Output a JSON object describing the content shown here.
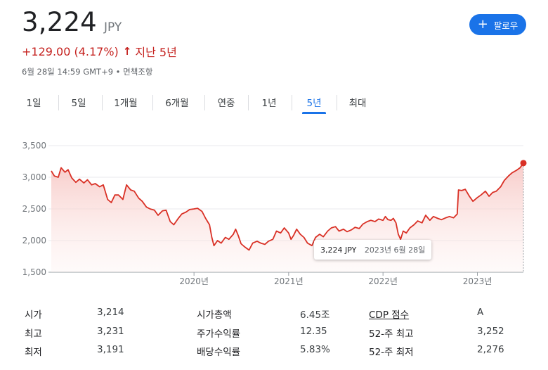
{
  "quote": {
    "price": "3,224",
    "currency": "JPY",
    "change": "+129.00 (4.17%)",
    "period_label": "지난 5년",
    "meta": "6월 28일 14:59 GMT+9 • 면책조항",
    "follow_label": "팔로우"
  },
  "tabs": [
    {
      "label": "1일"
    },
    {
      "label": "5일"
    },
    {
      "label": "1개월"
    },
    {
      "label": "6개월"
    },
    {
      "label": "연중"
    },
    {
      "label": "1년"
    },
    {
      "label": "5년",
      "active": true
    },
    {
      "label": "최대"
    }
  ],
  "tooltip": {
    "price": "3,224 JPY",
    "date": "2023년 6월 28일"
  },
  "chart_data": {
    "type": "area",
    "ylim": [
      1500,
      3500
    ],
    "yticks": [
      "3,500",
      "3,000",
      "2,500",
      "2,000",
      "1,500"
    ],
    "xticks": [
      "2020년",
      "2021년",
      "2022년",
      "2023년"
    ],
    "x_start": "2018-06-28",
    "x_end": "2023-06-28",
    "line_color": "#d93025",
    "points": [
      [
        "2018-06-28",
        3100
      ],
      [
        "2018-07-10",
        3020
      ],
      [
        "2018-07-25",
        3000
      ],
      [
        "2018-08-05",
        3150
      ],
      [
        "2018-08-20",
        3080
      ],
      [
        "2018-09-01",
        3120
      ],
      [
        "2018-09-15",
        2990
      ],
      [
        "2018-10-01",
        2920
      ],
      [
        "2018-10-15",
        2970
      ],
      [
        "2018-11-01",
        2910
      ],
      [
        "2018-11-15",
        2960
      ],
      [
        "2018-12-01",
        2880
      ],
      [
        "2018-12-15",
        2900
      ],
      [
        "2019-01-01",
        2850
      ],
      [
        "2019-01-15",
        2880
      ],
      [
        "2019-02-01",
        2650
      ],
      [
        "2019-02-15",
        2600
      ],
      [
        "2019-03-01",
        2720
      ],
      [
        "2019-03-15",
        2720
      ],
      [
        "2019-04-01",
        2650
      ],
      [
        "2019-04-15",
        2880
      ],
      [
        "2019-05-01",
        2800
      ],
      [
        "2019-05-15",
        2780
      ],
      [
        "2019-06-01",
        2670
      ],
      [
        "2019-06-15",
        2620
      ],
      [
        "2019-07-01",
        2530
      ],
      [
        "2019-07-15",
        2500
      ],
      [
        "2019-08-01",
        2480
      ],
      [
        "2019-08-15",
        2400
      ],
      [
        "2019-09-01",
        2470
      ],
      [
        "2019-09-15",
        2480
      ],
      [
        "2019-10-01",
        2300
      ],
      [
        "2019-10-15",
        2250
      ],
      [
        "2019-11-01",
        2350
      ],
      [
        "2019-11-15",
        2420
      ],
      [
        "2019-12-01",
        2450
      ],
      [
        "2019-12-15",
        2490
      ],
      [
        "2020-01-01",
        2500
      ],
      [
        "2020-01-15",
        2510
      ],
      [
        "2020-02-01",
        2460
      ],
      [
        "2020-02-15",
        2350
      ],
      [
        "2020-03-01",
        2250
      ],
      [
        "2020-03-10",
        2050
      ],
      [
        "2020-03-18",
        1920
      ],
      [
        "2020-04-01",
        2000
      ],
      [
        "2020-04-15",
        1960
      ],
      [
        "2020-05-01",
        2050
      ],
      [
        "2020-05-15",
        2020
      ],
      [
        "2020-06-01",
        2100
      ],
      [
        "2020-06-10",
        2180
      ],
      [
        "2020-06-20",
        2080
      ],
      [
        "2020-07-01",
        1950
      ],
      [
        "2020-07-15",
        1900
      ],
      [
        "2020-08-01",
        1850
      ],
      [
        "2020-08-15",
        1960
      ],
      [
        "2020-09-01",
        1990
      ],
      [
        "2020-09-15",
        1960
      ],
      [
        "2020-10-01",
        1940
      ],
      [
        "2020-10-15",
        1990
      ],
      [
        "2020-11-01",
        2020
      ],
      [
        "2020-11-15",
        2150
      ],
      [
        "2020-12-01",
        2120
      ],
      [
        "2020-12-15",
        2200
      ],
      [
        "2021-01-01",
        2120
      ],
      [
        "2021-01-10",
        2020
      ],
      [
        "2021-01-20",
        2080
      ],
      [
        "2021-02-01",
        2180
      ],
      [
        "2021-02-15",
        2100
      ],
      [
        "2021-03-01",
        2050
      ],
      [
        "2021-03-15",
        1960
      ],
      [
        "2021-04-01",
        1920
      ],
      [
        "2021-04-15",
        2050
      ],
      [
        "2021-05-01",
        2100
      ],
      [
        "2021-05-15",
        2060
      ],
      [
        "2021-06-01",
        2150
      ],
      [
        "2021-06-15",
        2200
      ],
      [
        "2021-07-01",
        2220
      ],
      [
        "2021-07-15",
        2150
      ],
      [
        "2021-08-01",
        2180
      ],
      [
        "2021-08-15",
        2140
      ],
      [
        "2021-09-01",
        2170
      ],
      [
        "2021-09-15",
        2210
      ],
      [
        "2021-10-01",
        2190
      ],
      [
        "2021-10-15",
        2260
      ],
      [
        "2021-11-01",
        2300
      ],
      [
        "2021-11-15",
        2320
      ],
      [
        "2021-12-01",
        2300
      ],
      [
        "2021-12-15",
        2340
      ],
      [
        "2022-01-01",
        2320
      ],
      [
        "2022-01-10",
        2380
      ],
      [
        "2022-01-20",
        2330
      ],
      [
        "2022-02-01",
        2320
      ],
      [
        "2022-02-10",
        2350
      ],
      [
        "2022-02-20",
        2280
      ],
      [
        "2022-03-01",
        2100
      ],
      [
        "2022-03-10",
        2020
      ],
      [
        "2022-03-20",
        2150
      ],
      [
        "2022-04-01",
        2120
      ],
      [
        "2022-04-15",
        2200
      ],
      [
        "2022-05-01",
        2250
      ],
      [
        "2022-05-15",
        2310
      ],
      [
        "2022-06-01",
        2280
      ],
      [
        "2022-06-15",
        2400
      ],
      [
        "2022-07-01",
        2320
      ],
      [
        "2022-07-15",
        2380
      ],
      [
        "2022-08-01",
        2350
      ],
      [
        "2022-08-15",
        2330
      ],
      [
        "2022-09-01",
        2360
      ],
      [
        "2022-09-15",
        2380
      ],
      [
        "2022-10-01",
        2360
      ],
      [
        "2022-10-15",
        2420
      ],
      [
        "2022-10-20",
        2800
      ],
      [
        "2022-11-01",
        2790
      ],
      [
        "2022-11-15",
        2810
      ],
      [
        "2022-12-01",
        2700
      ],
      [
        "2022-12-15",
        2620
      ],
      [
        "2023-01-01",
        2680
      ],
      [
        "2023-01-15",
        2720
      ],
      [
        "2023-02-01",
        2780
      ],
      [
        "2023-02-15",
        2700
      ],
      [
        "2023-03-01",
        2760
      ],
      [
        "2023-03-15",
        2780
      ],
      [
        "2023-04-01",
        2850
      ],
      [
        "2023-04-15",
        2950
      ],
      [
        "2023-05-01",
        3020
      ],
      [
        "2023-05-15",
        3070
      ],
      [
        "2023-06-01",
        3110
      ],
      [
        "2023-06-15",
        3150
      ],
      [
        "2023-06-28",
        3224
      ]
    ]
  },
  "stats": [
    {
      "label": "시가",
      "value": "3,214"
    },
    {
      "label": "최고",
      "value": "3,231"
    },
    {
      "label": "최저",
      "value": "3,191"
    },
    {
      "label": "시가총액",
      "value": "6.45조"
    },
    {
      "label": "주가수익률",
      "value": "12.35"
    },
    {
      "label": "배당수익률",
      "value": "5.83%"
    },
    {
      "label": "CDP 점수",
      "value": "A"
    },
    {
      "label": "52-주 최고",
      "value": "3,252"
    },
    {
      "label": "52-주 최저",
      "value": "2,276"
    }
  ]
}
